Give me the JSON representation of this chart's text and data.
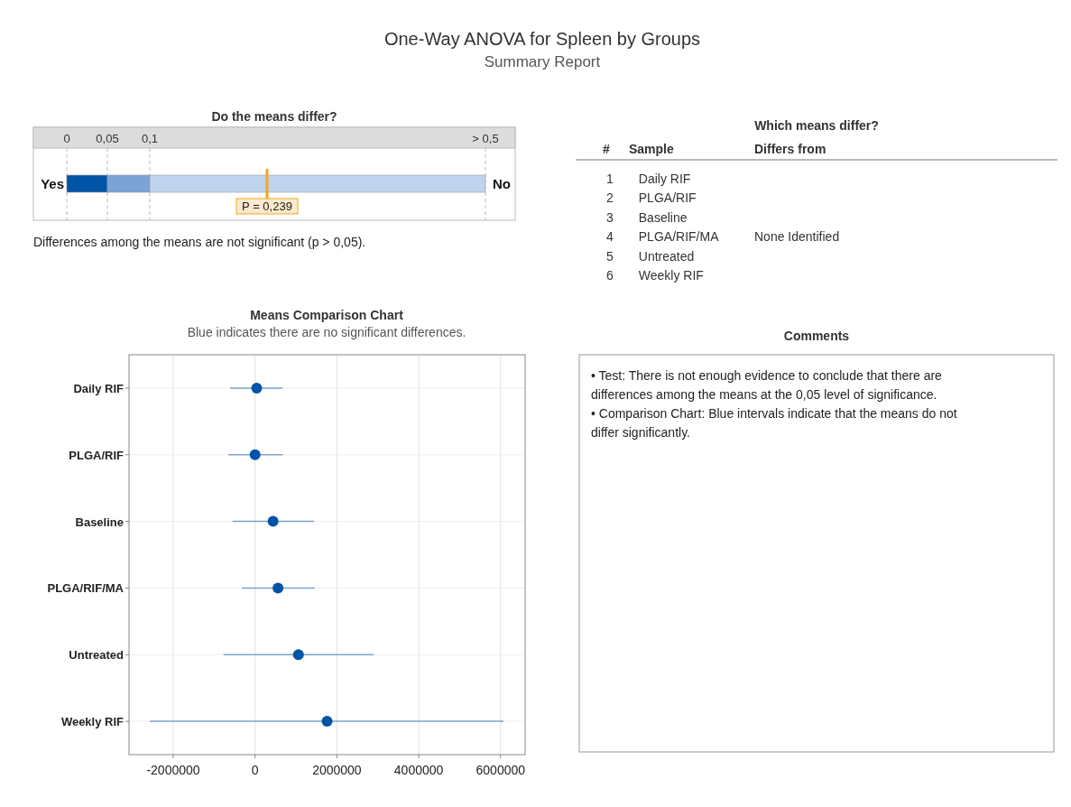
{
  "chart_data": [
    {
      "type": "other",
      "title": "One-Way ANOVA for Spleen by Groups",
      "subtitle": "Summary Report"
    },
    {
      "type": "other",
      "title": "Do the means differ?",
      "annotations": [
        "0",
        "0,05",
        "0,1",
        "> 0,5",
        "Yes",
        "No",
        "P = 0,239",
        "Differences among the means are not significant (p > 0,05)."
      ]
    },
    {
      "type": "other",
      "title": "Which means differ?",
      "annotations": [
        "#",
        "Sample",
        "Differs from",
        "1",
        "Daily RIF",
        "2",
        "PLGA/RIF",
        "3",
        "Baseline",
        "4",
        "PLGA/RIF/MA",
        "5",
        "Untreated",
        "6",
        "Weekly RIF",
        "None Identified"
      ]
    },
    {
      "type": "scatter",
      "title": "Means Comparison Chart",
      "subtitle": "Blue indicates there are no significant differences.",
      "orientation": "horizontal",
      "categories": [
        "Daily RIF",
        "PLGA/RIF",
        "Baseline",
        "PLGA/RIF/MA",
        "Untreated",
        "Weekly RIF"
      ],
      "values": [
        40000,
        0,
        440000,
        560000,
        1060000,
        1760000
      ],
      "errors": [
        [
          -610000,
          680000
        ],
        [
          -650000,
          680000
        ],
        [
          -550000,
          1440000
        ],
        [
          -320000,
          1460000
        ],
        [
          -770000,
          2900000
        ],
        [
          -2570000,
          6070000
        ]
      ],
      "color": "#0054a6",
      "marker": "circle",
      "grid": true,
      "xlim": [
        -3080000,
        6600000
      ],
      "xticks": [
        -2000000,
        0,
        2000000,
        4000000,
        6000000
      ]
    },
    {
      "type": "other",
      "title": "Comments",
      "annotations": [
        "• Test: There is not enough evidence to conclude that there are differences among the means at the 0,05 level of significance.",
        "• Comparison Chart: Blue intervals indicate that the means do not differ significantly."
      ]
    }
  ]
}
